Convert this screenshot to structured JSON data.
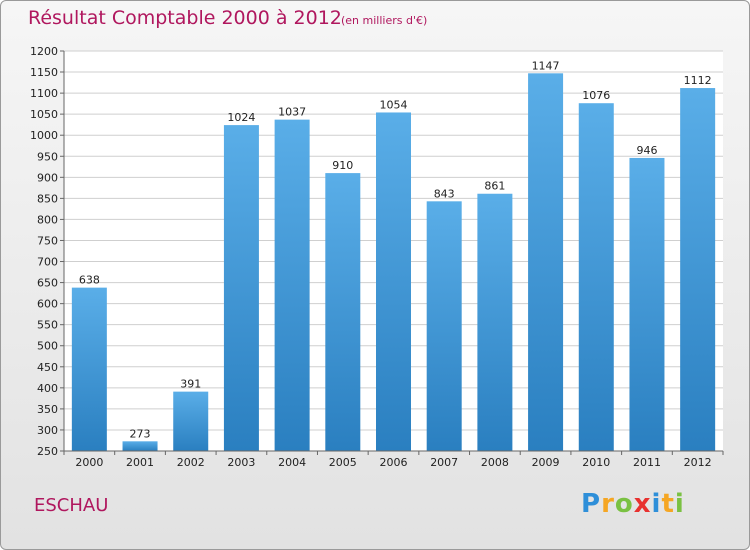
{
  "header": {
    "title": "Résultat Comptable 2000 à 2012",
    "subtitle": "(en milliers d'€)"
  },
  "footer": {
    "commune": "ESCHAU",
    "logo_letters": [
      "P",
      "r",
      "o",
      "x",
      "i",
      "t",
      "i"
    ]
  },
  "colors": {
    "title": "#b0175e",
    "bar_top": "#5aaee8",
    "bar_bottom": "#2a7fc0"
  },
  "chart_data": {
    "type": "bar",
    "title": "Résultat Comptable 2000 à 2012",
    "subtitle": "(en milliers d'€)",
    "categories": [
      "2000",
      "2001",
      "2002",
      "2003",
      "2004",
      "2005",
      "2006",
      "2007",
      "2008",
      "2009",
      "2010",
      "2011",
      "2012"
    ],
    "values": [
      638,
      273,
      391,
      1024,
      1037,
      910,
      1054,
      843,
      861,
      1147,
      1076,
      946,
      1112
    ],
    "yticks": [
      250,
      300,
      350,
      400,
      450,
      500,
      550,
      600,
      650,
      700,
      750,
      800,
      850,
      900,
      950,
      1000,
      1050,
      1100,
      1150,
      1200
    ],
    "ylim": [
      250,
      1200
    ],
    "xlabel": "",
    "ylabel": "",
    "grid": true
  }
}
